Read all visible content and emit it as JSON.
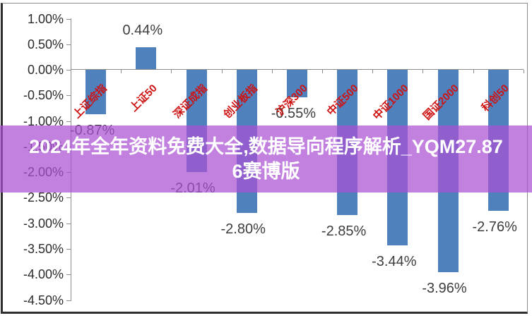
{
  "banner": {
    "line1": "2024年全年资料免费大全,数据导向程序解析_YQM27.87",
    "line2": "6赛博版",
    "full_text": "2024年全年资料免费大全,数据导向程序解析_YQM27.876赛博版",
    "background_color": "rgba(170,80,210,0.72)",
    "text_color": "#ffffff"
  },
  "chart_data": {
    "type": "bar",
    "title": "",
    "categories": [
      "上证综指",
      "上证50",
      "深证成指",
      "创业板指",
      "沪深300",
      "中证500",
      "中证1000",
      "国证2000",
      "科创50"
    ],
    "values": [
      -0.87,
      0.44,
      -2.01,
      -2.8,
      -0.55,
      -2.85,
      -3.44,
      -3.96,
      -2.76
    ],
    "value_labels": [
      "-0.87%",
      "0.44%",
      "-2.01%",
      "-2.80%",
      "-0.55%",
      "-2.85%",
      "-3.44%",
      "-3.96%",
      "-2.76%"
    ],
    "xlabel": "",
    "ylabel": "",
    "y_axis": {
      "min": -4.5,
      "max": 1.0,
      "step": 0.5,
      "tick_labels": [
        "1.00%",
        "0.50%",
        "0.00%",
        "-0.50%",
        "-1.00%",
        "-1.50%",
        "-2.00%",
        "-2.50%",
        "-3.00%",
        "-3.50%",
        "-4.00%",
        "-4.50%"
      ]
    },
    "grid": false,
    "legend": false,
    "colors": {
      "bar": "#4F81BD",
      "category_label": "#CE1212",
      "value_label": "#3d3d3d",
      "axis": "#8c8c8c"
    }
  }
}
